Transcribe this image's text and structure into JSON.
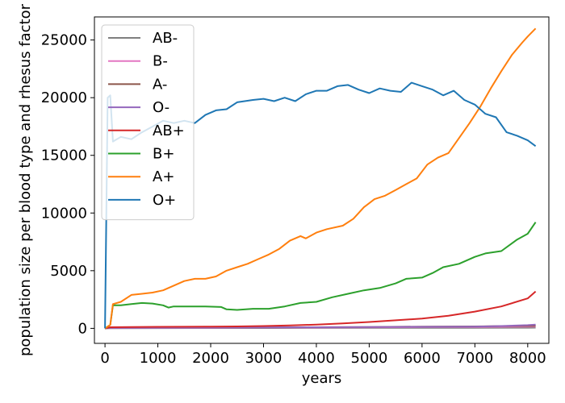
{
  "chart_data": {
    "type": "line",
    "title": "",
    "xlabel": "years",
    "ylabel": "population size per blood type and rhesus factor",
    "xlim": [
      -200,
      8400
    ],
    "ylim": [
      -1300,
      27000
    ],
    "xticks": [
      0,
      1000,
      2000,
      3000,
      4000,
      5000,
      6000,
      7000,
      8000
    ],
    "yticks": [
      0,
      5000,
      10000,
      15000,
      20000,
      25000
    ],
    "grid": false,
    "legend_position": "top-left",
    "series": [
      {
        "name": "AB-",
        "color": "#7f7f7f",
        "x": [
          0,
          100,
          1000,
          2000,
          3000,
          4000,
          5000,
          6000,
          7000,
          8000,
          8150
        ],
        "y": [
          0,
          15,
          20,
          25,
          30,
          35,
          40,
          40,
          45,
          55,
          60
        ]
      },
      {
        "name": "B-",
        "color": "#e377c2",
        "x": [
          0,
          100,
          1000,
          2000,
          3000,
          4000,
          5000,
          6000,
          7000,
          8000,
          8150
        ],
        "y": [
          0,
          40,
          45,
          50,
          60,
          70,
          90,
          110,
          120,
          150,
          160
        ]
      },
      {
        "name": "A-",
        "color": "#8c564b",
        "x": [
          0,
          100,
          1000,
          2000,
          3000,
          4000,
          5000,
          6000,
          7000,
          8000,
          8150
        ],
        "y": [
          0,
          60,
          65,
          70,
          80,
          100,
          120,
          150,
          170,
          220,
          230
        ]
      },
      {
        "name": "O-",
        "color": "#9467bd",
        "x": [
          0,
          100,
          1000,
          2000,
          3000,
          4000,
          5000,
          6000,
          7000,
          7500,
          8000,
          8150
        ],
        "y": [
          0,
          50,
          60,
          70,
          80,
          100,
          120,
          130,
          150,
          200,
          280,
          320
        ]
      },
      {
        "name": "AB+",
        "color": "#d62728",
        "x": [
          0,
          100,
          500,
          1000,
          1500,
          2000,
          2500,
          3000,
          3500,
          4000,
          4500,
          5000,
          5500,
          6000,
          6500,
          7000,
          7500,
          8000,
          8150
        ],
        "y": [
          0,
          100,
          120,
          130,
          140,
          150,
          170,
          200,
          250,
          330,
          430,
          550,
          700,
          850,
          1100,
          1450,
          1900,
          2600,
          3200
        ]
      },
      {
        "name": "B+",
        "color": "#2ca02c",
        "x": [
          0,
          100,
          150,
          300,
          500,
          700,
          900,
          1100,
          1200,
          1300,
          1600,
          1900,
          2200,
          2300,
          2500,
          2800,
          3100,
          3400,
          3700,
          4000,
          4300,
          4600,
          4900,
          5200,
          5500,
          5700,
          6000,
          6200,
          6400,
          6700,
          7000,
          7200,
          7500,
          7800,
          8000,
          8150
        ],
        "y": [
          0,
          300,
          2000,
          2000,
          2100,
          2200,
          2150,
          2000,
          1800,
          1900,
          1900,
          1900,
          1850,
          1650,
          1600,
          1700,
          1700,
          1900,
          2200,
          2300,
          2700,
          3000,
          3300,
          3500,
          3900,
          4300,
          4400,
          4800,
          5300,
          5600,
          6200,
          6500,
          6700,
          7700,
          8200,
          9200
        ]
      },
      {
        "name": "A+",
        "color": "#ff7f0e",
        "x": [
          0,
          100,
          150,
          300,
          500,
          700,
          900,
          1100,
          1300,
          1500,
          1700,
          1900,
          2100,
          2300,
          2500,
          2700,
          2900,
          3100,
          3300,
          3500,
          3700,
          3800,
          4000,
          4200,
          4500,
          4700,
          4900,
          5100,
          5300,
          5500,
          5700,
          5900,
          6100,
          6300,
          6500,
          6700,
          6900,
          7100,
          7300,
          7500,
          7700,
          7900,
          8000,
          8150
        ],
        "y": [
          0,
          300,
          2100,
          2300,
          2900,
          3000,
          3100,
          3300,
          3700,
          4100,
          4300,
          4300,
          4500,
          5000,
          5300,
          5600,
          6000,
          6400,
          6900,
          7600,
          8000,
          7800,
          8300,
          8600,
          8900,
          9500,
          10500,
          11200,
          11500,
          12000,
          12500,
          13000,
          14200,
          14800,
          15200,
          16500,
          17800,
          19200,
          20800,
          22300,
          23700,
          24800,
          25300,
          26000
        ]
      },
      {
        "name": "O+",
        "color": "#1f77b4",
        "x": [
          0,
          50,
          100,
          150,
          300,
          500,
          700,
          900,
          1100,
          1300,
          1500,
          1700,
          1900,
          2100,
          2300,
          2500,
          2800,
          3000,
          3200,
          3400,
          3600,
          3800,
          4000,
          4200,
          4400,
          4600,
          4800,
          5000,
          5200,
          5400,
          5600,
          5800,
          6000,
          6200,
          6400,
          6600,
          6800,
          7000,
          7200,
          7400,
          7600,
          7800,
          8000,
          8150
        ],
        "y": [
          0,
          20000,
          20200,
          16200,
          16600,
          16400,
          17000,
          17500,
          18000,
          17800,
          18000,
          17800,
          18500,
          18900,
          19000,
          19600,
          19800,
          19900,
          19700,
          20000,
          19700,
          20300,
          20600,
          20600,
          21000,
          21100,
          20700,
          20400,
          20800,
          20600,
          20500,
          21300,
          21000,
          20700,
          20200,
          20600,
          19800,
          19400,
          18600,
          18300,
          17000,
          16700,
          16300,
          15800
        ]
      }
    ]
  }
}
